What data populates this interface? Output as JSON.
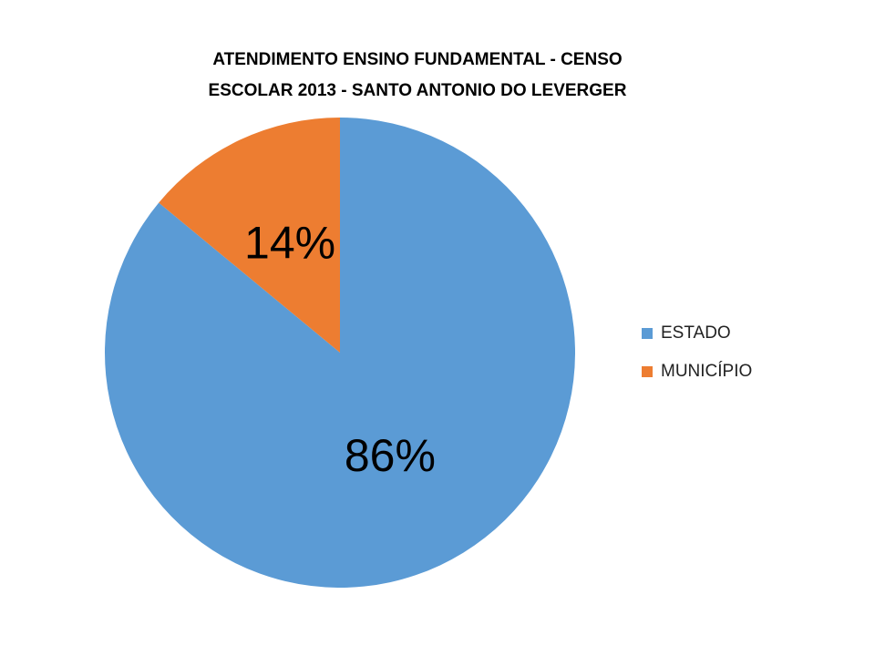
{
  "chart_data": {
    "type": "pie",
    "title": [
      "ATENDIMENTO ENSINO FUNDAMENTAL -  CENSO",
      "ESCOLAR 2013 - SANTO ANTONIO DO LEVERGER"
    ],
    "categories": [
      "ESTADO",
      "MUNICÍPIO"
    ],
    "values": [
      86,
      14
    ],
    "value_labels": [
      "86%",
      "14%"
    ],
    "colors": [
      "#5b9bd5",
      "#ed7d31"
    ],
    "legend": "right"
  }
}
